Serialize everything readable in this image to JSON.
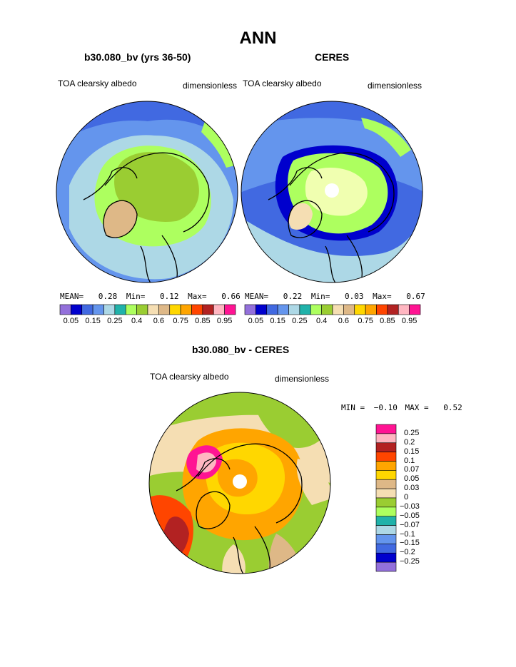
{
  "page": {
    "title": "ANN"
  },
  "panels": [
    {
      "subtitle": "b30.080_bv (yrs 36-50)",
      "left_label": "TOA clearsky albedo",
      "right_label": "dimensionless",
      "stats": {
        "mean_label": "MEAN=",
        "mean": "0.28",
        "min_label": "Min=",
        "min": "0.12",
        "max_label": "Max=",
        "max": "0.66"
      }
    },
    {
      "subtitle": "CERES",
      "left_label": "TOA clearsky albedo",
      "right_label": "dimensionless",
      "stats": {
        "mean_label": "MEAN=",
        "mean": "0.22",
        "min_label": "Min=",
        "min": "0.03",
        "max_label": "Max=",
        "max": "0.67"
      }
    },
    {
      "subtitle": "b30.080_bv - CERES",
      "left_label": "TOA clearsky albedo",
      "right_label": "dimensionless",
      "stats": {
        "min_label": "MIN =",
        "min": "−0.10",
        "max_label": "MAX =",
        "max": "0.52"
      }
    }
  ],
  "chart_data": [
    {
      "type": "heatmap",
      "projection": "north polar stereographic",
      "title": "b30.080_bv (yrs 36-50)",
      "variable": "TOA clearsky albedo",
      "units": "dimensionless",
      "mean": 0.28,
      "min": 0.12,
      "max": 0.66,
      "colorbar": {
        "orientation": "horizontal",
        "levels": [
          "0.05",
          "0.1",
          "0.15",
          "0.2",
          "0.25",
          "0.3",
          "0.4",
          "0.5",
          "0.6",
          "0.7",
          "0.75",
          "0.8",
          "0.85",
          "0.9",
          "0.95"
        ],
        "tick_labels": [
          "0.05",
          "0.15",
          "0.25",
          "0.4",
          "0.6",
          "0.75",
          "0.85",
          "0.95"
        ],
        "colors": [
          "#9370db",
          "#0000cd",
          "#4169e1",
          "#6495ed",
          "#add8e6",
          "#20b2aa",
          "#adff5f",
          "#9acd32",
          "#f5deb3",
          "#deb887",
          "#ffd700",
          "#ffa500",
          "#ff4500",
          "#b22222",
          "#ffb6c1",
          "#ff1493"
        ]
      }
    },
    {
      "type": "heatmap",
      "projection": "north polar stereographic",
      "title": "CERES",
      "variable": "TOA clearsky albedo",
      "units": "dimensionless",
      "mean": 0.22,
      "min": 0.03,
      "max": 0.67,
      "colorbar": {
        "orientation": "horizontal",
        "levels": [
          "0.05",
          "0.1",
          "0.15",
          "0.2",
          "0.25",
          "0.3",
          "0.4",
          "0.5",
          "0.6",
          "0.7",
          "0.75",
          "0.8",
          "0.85",
          "0.9",
          "0.95"
        ],
        "tick_labels": [
          "0.05",
          "0.15",
          "0.25",
          "0.4",
          "0.6",
          "0.75",
          "0.85",
          "0.95"
        ],
        "colors": [
          "#9370db",
          "#0000cd",
          "#4169e1",
          "#6495ed",
          "#add8e6",
          "#20b2aa",
          "#adff5f",
          "#9acd32",
          "#f5deb3",
          "#deb887",
          "#ffd700",
          "#ffa500",
          "#ff4500",
          "#b22222",
          "#ffb6c1",
          "#ff1493"
        ]
      }
    },
    {
      "type": "heatmap",
      "projection": "north polar stereographic",
      "title": "b30.080_bv - CERES",
      "variable": "TOA clearsky albedo",
      "units": "dimensionless",
      "min": -0.1,
      "max": 0.52,
      "colorbar": {
        "orientation": "vertical",
        "tick_labels": [
          "0.25",
          "0.2",
          "0.15",
          "0.1",
          "0.07",
          "0.05",
          "0.03",
          "0",
          "−0.03",
          "−0.05",
          "−0.07",
          "−0.1",
          "−0.15",
          "−0.2",
          "−0.25"
        ],
        "colors": [
          "#ff1493",
          "#ffb6c1",
          "#b22222",
          "#ff4500",
          "#ffa500",
          "#ffd700",
          "#deb887",
          "#f5deb3",
          "#9acd32",
          "#adff5f",
          "#20b2aa",
          "#add8e6",
          "#6495ed",
          "#4169e1",
          "#0000cd",
          "#9370db"
        ]
      }
    }
  ]
}
